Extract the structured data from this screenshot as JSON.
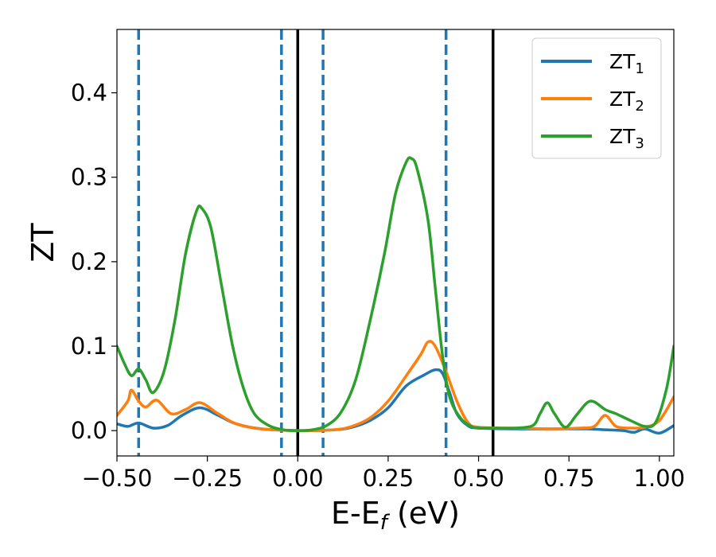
{
  "chart_data": {
    "type": "line",
    "xlabel": {
      "base": "E-E",
      "sub": "f",
      "rest": " (eV)"
    },
    "ylabel": "ZT",
    "xlim": [
      -0.5,
      1.04
    ],
    "ylim": [
      -0.03,
      0.475
    ],
    "x_ticks": [
      {
        "value": -0.5,
        "label": "−0.50"
      },
      {
        "value": -0.25,
        "label": "−0.25"
      },
      {
        "value": 0.0,
        "label": "0.00"
      },
      {
        "value": 0.25,
        "label": "0.25"
      },
      {
        "value": 0.5,
        "label": "0.50"
      },
      {
        "value": 0.75,
        "label": "0.75"
      },
      {
        "value": 1.0,
        "label": "1.00"
      }
    ],
    "y_ticks": [
      {
        "value": 0.0,
        "label": "0.0"
      },
      {
        "value": 0.1,
        "label": "0.1"
      },
      {
        "value": 0.2,
        "label": "0.2"
      },
      {
        "value": 0.3,
        "label": "0.3"
      },
      {
        "value": 0.4,
        "label": "0.4"
      }
    ],
    "legend_position": "top-right",
    "grid": false,
    "vlines_solid": [
      0.0,
      0.54
    ],
    "vlines_dashed": [
      -0.44,
      -0.045,
      0.07,
      0.41
    ],
    "vline_solid_color": "#000000",
    "vline_dashed_color": "#1f77b4",
    "series": [
      {
        "name": "ZT",
        "name_sub": "1",
        "color": "#1f77b4",
        "points": [
          [
            -0.5,
            0.008
          ],
          [
            -0.47,
            0.005
          ],
          [
            -0.44,
            0.009
          ],
          [
            -0.4,
            0.003
          ],
          [
            -0.36,
            0.006
          ],
          [
            -0.32,
            0.018
          ],
          [
            -0.27,
            0.027
          ],
          [
            -0.22,
            0.018
          ],
          [
            -0.17,
            0.008
          ],
          [
            -0.1,
            0.002
          ],
          [
            0.0,
            0.0
          ],
          [
            0.1,
            0.001
          ],
          [
            0.15,
            0.004
          ],
          [
            0.2,
            0.012
          ],
          [
            0.25,
            0.027
          ],
          [
            0.3,
            0.053
          ],
          [
            0.35,
            0.066
          ],
          [
            0.38,
            0.072
          ],
          [
            0.4,
            0.068
          ],
          [
            0.42,
            0.045
          ],
          [
            0.44,
            0.02
          ],
          [
            0.47,
            0.006
          ],
          [
            0.5,
            0.003
          ],
          [
            0.6,
            0.002
          ],
          [
            0.7,
            0.002
          ],
          [
            0.8,
            0.002
          ],
          [
            0.85,
            0.001
          ],
          [
            0.9,
            0.0
          ],
          [
            0.93,
            -0.002
          ],
          [
            0.96,
            0.002
          ],
          [
            1.0,
            -0.003
          ],
          [
            1.04,
            0.006
          ]
        ]
      },
      {
        "name": "ZT",
        "name_sub": "2",
        "color": "#ff7f0e",
        "points": [
          [
            -0.5,
            0.018
          ],
          [
            -0.47,
            0.035
          ],
          [
            -0.46,
            0.048
          ],
          [
            -0.44,
            0.035
          ],
          [
            -0.42,
            0.028
          ],
          [
            -0.39,
            0.036
          ],
          [
            -0.35,
            0.02
          ],
          [
            -0.31,
            0.025
          ],
          [
            -0.27,
            0.033
          ],
          [
            -0.22,
            0.02
          ],
          [
            -0.17,
            0.008
          ],
          [
            -0.1,
            0.002
          ],
          [
            0.0,
            0.0
          ],
          [
            0.1,
            0.001
          ],
          [
            0.15,
            0.005
          ],
          [
            0.2,
            0.015
          ],
          [
            0.25,
            0.035
          ],
          [
            0.3,
            0.065
          ],
          [
            0.34,
            0.09
          ],
          [
            0.36,
            0.105
          ],
          [
            0.38,
            0.1
          ],
          [
            0.41,
            0.07
          ],
          [
            0.44,
            0.035
          ],
          [
            0.47,
            0.01
          ],
          [
            0.5,
            0.004
          ],
          [
            0.6,
            0.003
          ],
          [
            0.7,
            0.002
          ],
          [
            0.78,
            0.003
          ],
          [
            0.82,
            0.005
          ],
          [
            0.85,
            0.018
          ],
          [
            0.88,
            0.005
          ],
          [
            0.92,
            0.003
          ],
          [
            0.96,
            0.004
          ],
          [
            1.0,
            0.012
          ],
          [
            1.04,
            0.04
          ]
        ]
      },
      {
        "name": "ZT",
        "name_sub": "3",
        "color": "#2ca02c",
        "points": [
          [
            -0.5,
            0.1
          ],
          [
            -0.48,
            0.08
          ],
          [
            -0.46,
            0.065
          ],
          [
            -0.44,
            0.073
          ],
          [
            -0.42,
            0.06
          ],
          [
            -0.4,
            0.045
          ],
          [
            -0.37,
            0.07
          ],
          [
            -0.34,
            0.13
          ],
          [
            -0.31,
            0.21
          ],
          [
            -0.28,
            0.26
          ],
          [
            -0.265,
            0.263
          ],
          [
            -0.24,
            0.24
          ],
          [
            -0.21,
            0.17
          ],
          [
            -0.18,
            0.1
          ],
          [
            -0.15,
            0.05
          ],
          [
            -0.12,
            0.02
          ],
          [
            -0.08,
            0.006
          ],
          [
            -0.04,
            0.001
          ],
          [
            0.0,
            0.0
          ],
          [
            0.04,
            0.001
          ],
          [
            0.08,
            0.006
          ],
          [
            0.12,
            0.022
          ],
          [
            0.16,
            0.06
          ],
          [
            0.2,
            0.13
          ],
          [
            0.24,
            0.21
          ],
          [
            0.27,
            0.28
          ],
          [
            0.3,
            0.318
          ],
          [
            0.315,
            0.322
          ],
          [
            0.33,
            0.31
          ],
          [
            0.36,
            0.25
          ],
          [
            0.38,
            0.17
          ],
          [
            0.4,
            0.09
          ],
          [
            0.42,
            0.04
          ],
          [
            0.45,
            0.015
          ],
          [
            0.48,
            0.005
          ],
          [
            0.5,
            0.003
          ],
          [
            0.55,
            0.003
          ],
          [
            0.6,
            0.003
          ],
          [
            0.65,
            0.006
          ],
          [
            0.67,
            0.02
          ],
          [
            0.69,
            0.033
          ],
          [
            0.71,
            0.02
          ],
          [
            0.74,
            0.004
          ],
          [
            0.77,
            0.018
          ],
          [
            0.8,
            0.033
          ],
          [
            0.82,
            0.034
          ],
          [
            0.85,
            0.025
          ],
          [
            0.88,
            0.02
          ],
          [
            0.92,
            0.012
          ],
          [
            0.96,
            0.005
          ],
          [
            0.99,
            0.01
          ],
          [
            1.02,
            0.05
          ],
          [
            1.04,
            0.1
          ]
        ]
      }
    ]
  }
}
